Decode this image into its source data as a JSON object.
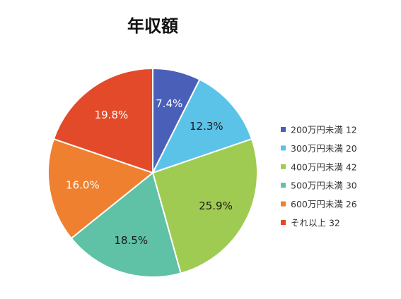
{
  "chart_data": {
    "type": "pie",
    "title": "年収額",
    "slices": [
      {
        "label": "200万円未満",
        "value": 12,
        "percent_label": "7.4%",
        "color": "#4a5fb8",
        "label_color": "#ffffff"
      },
      {
        "label": "300万円未満",
        "value": 20,
        "percent_label": "12.3%",
        "color": "#5bc3e8",
        "label_color": "#1a1a1a"
      },
      {
        "label": "400万円未満",
        "value": 42,
        "percent_label": "25.9%",
        "color": "#9fcb52",
        "label_color": "#1a1a1a"
      },
      {
        "label": "500万円未満",
        "value": 30,
        "percent_label": "18.5%",
        "color": "#5fc1a5",
        "label_color": "#1a1a1a"
      },
      {
        "label": "600万円未満",
        "value": 26,
        "percent_label": "16.0%",
        "color": "#ee8030",
        "label_color": "#ffffff"
      },
      {
        "label": "それ以上",
        "value": 32,
        "percent_label": "19.8%",
        "color": "#e34a2a",
        "label_color": "#ffffff"
      }
    ],
    "legend": {
      "placement": "right",
      "entries": [
        "200万円未満 12",
        "300万円未満 20",
        "400万円未満 42",
        "500万円未満 30",
        "600万円未満 26",
        "それ以上 32"
      ]
    },
    "start_angle": "12 o'clock",
    "direction": "clockwise"
  }
}
